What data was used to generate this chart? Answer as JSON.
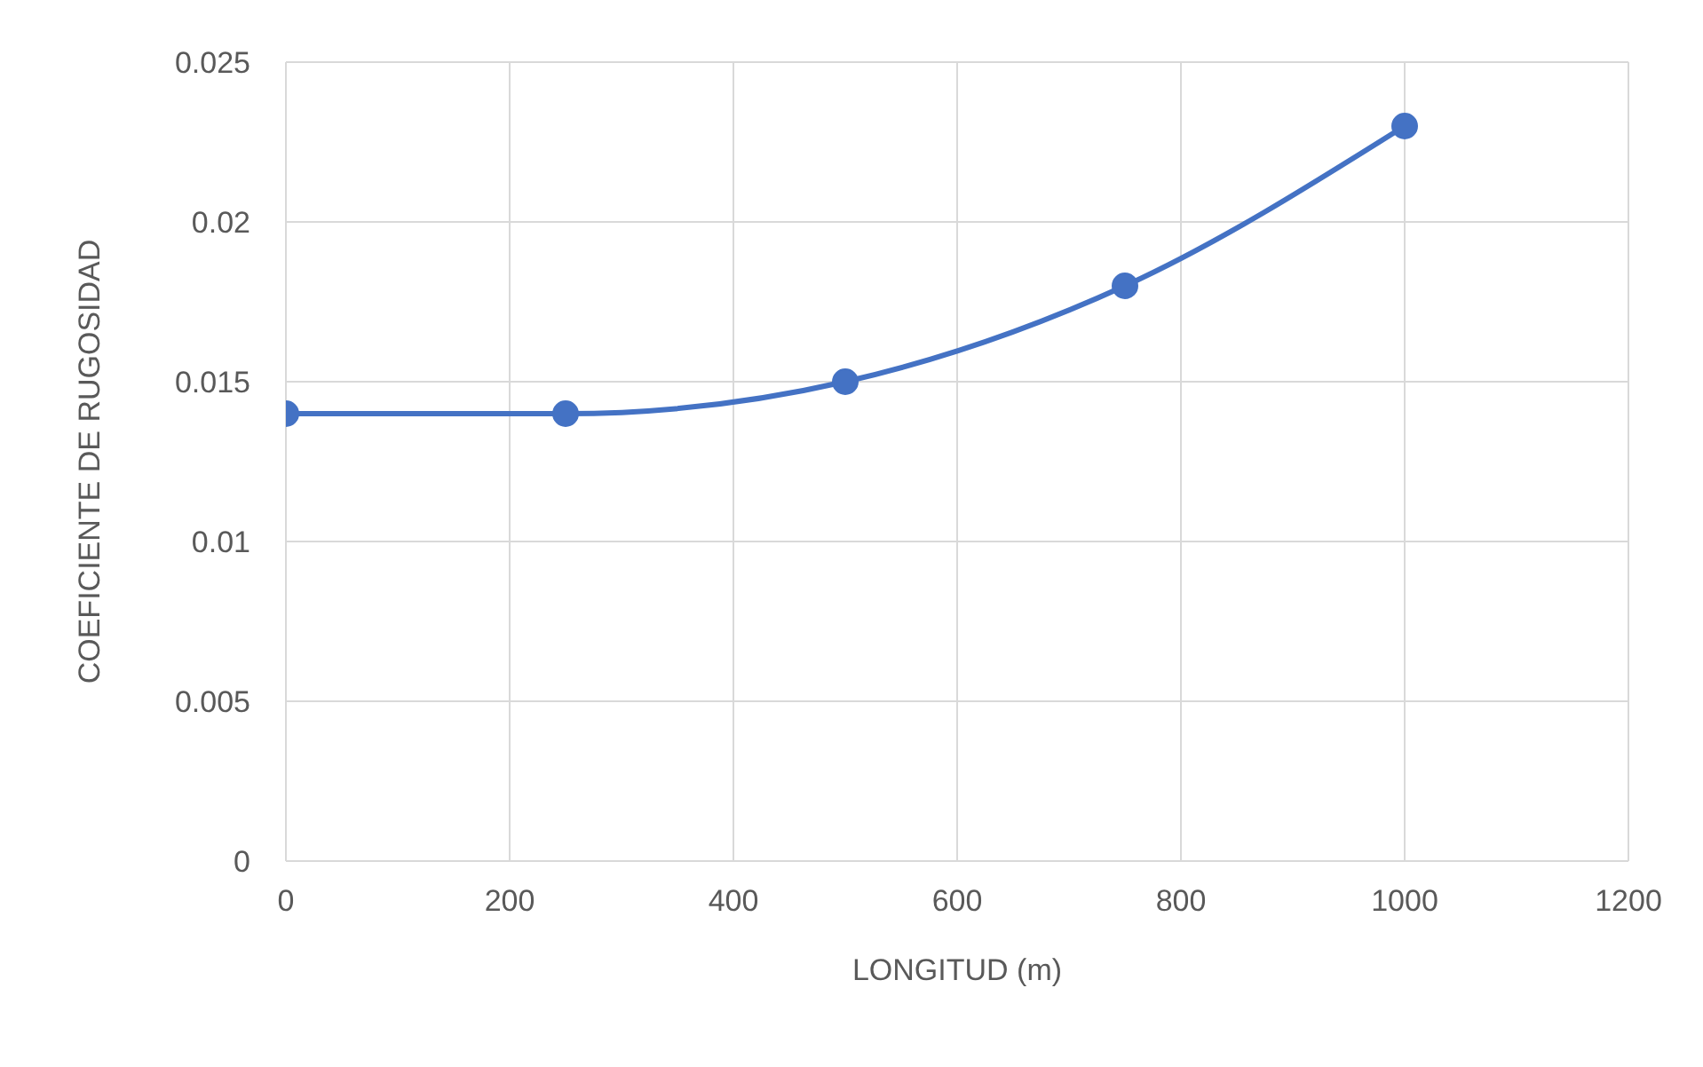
{
  "chart_data": {
    "type": "line",
    "xlabel": "LONGITUD (m)",
    "ylabel": "COEFICIENTE DE RUGOSIDAD",
    "x": [
      0,
      250,
      500,
      750,
      1000
    ],
    "series": [
      {
        "color": "#4472c4",
        "values": [
          0.014,
          0.014,
          0.015,
          0.018,
          0.023
        ]
      }
    ],
    "xlim": [
      0,
      1200
    ],
    "xticks": [
      0,
      200,
      400,
      600,
      800,
      1000,
      1200
    ],
    "ylim": [
      0,
      0.025
    ],
    "yticks": [
      0,
      0.005,
      0.01,
      0.015,
      0.02,
      0.025
    ],
    "grid": true,
    "marker": "circle",
    "line_style": "solid",
    "legend": false
  }
}
